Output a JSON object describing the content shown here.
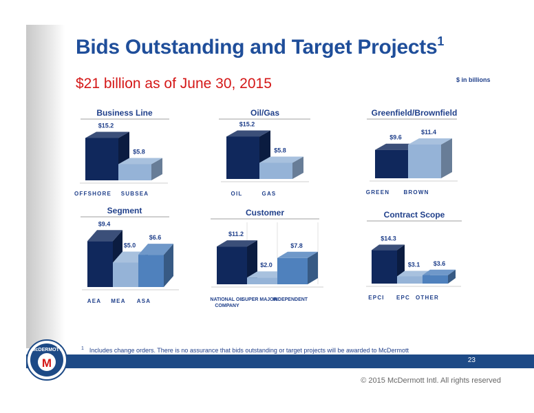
{
  "slide": {
    "title": "Bids Outstanding and Target Projects",
    "title_sup": "1",
    "subtitle": "$21 billion as of June 30, 2015",
    "units_note": "$ in billions",
    "footnote_marker": "1",
    "footnote": "Includes change orders. There is no assurance that bids outstanding or target projects will be awarded to McDermott",
    "page_number": "23",
    "copyright": "© 2015 McDermott Intl. All rights reserved",
    "logo_text": "McDERMOTT",
    "logo_letter": "M"
  },
  "colors": {
    "dark_navy": "#10285c",
    "light_blue": "#95b3d7",
    "mid_blue": "#4f81bd",
    "title_blue": "#1f4e9a",
    "subtitle_red": "#d41717",
    "band_blue": "#1d4a86"
  },
  "chart_data": [
    {
      "type": "bar",
      "title": "Business Line",
      "categories": [
        "OFFSHORE",
        "SUBSEA"
      ],
      "values": [
        15.2,
        5.8
      ],
      "labels": [
        "$15.2",
        "$5.8"
      ],
      "colors": [
        "#10285c",
        "#95b3d7"
      ]
    },
    {
      "type": "bar",
      "title": "Oil/Gas",
      "categories": [
        "OIL",
        "GAS"
      ],
      "values": [
        15.2,
        5.8
      ],
      "labels": [
        "$15.2",
        "$5.8"
      ],
      "colors": [
        "#10285c",
        "#95b3d7"
      ]
    },
    {
      "type": "bar",
      "title": "Greenfield/Brownfield",
      "categories": [
        "GREEN",
        "BROWN"
      ],
      "values": [
        9.6,
        11.4
      ],
      "labels": [
        "$9.6",
        "$11.4"
      ],
      "colors": [
        "#10285c",
        "#95b3d7"
      ]
    },
    {
      "type": "bar",
      "title": "Segment",
      "categories": [
        "AEA",
        "MEA",
        "ASA"
      ],
      "values": [
        9.4,
        5.0,
        6.6
      ],
      "labels": [
        "$9.4",
        "$5.0",
        "$6.6"
      ],
      "colors": [
        "#10285c",
        "#95b3d7",
        "#4f81bd"
      ]
    },
    {
      "type": "bar",
      "title": "Customer",
      "categories": [
        "NATIONAL OIL COMPANY",
        "SUPER MAJOR",
        "INDEPENDENT"
      ],
      "values": [
        11.2,
        2.0,
        7.8
      ],
      "labels": [
        "$11.2",
        "$2.0",
        "$7.8"
      ],
      "colors": [
        "#10285c",
        "#95b3d7",
        "#4f81bd"
      ]
    },
    {
      "type": "bar",
      "title": "Contract Scope",
      "categories": [
        "EPCI",
        "EPC",
        "OTHER"
      ],
      "values": [
        14.3,
        3.1,
        3.6
      ],
      "labels": [
        "$14.3",
        "$3.1",
        "$3.6"
      ],
      "colors": [
        "#10285c",
        "#95b3d7",
        "#4f81bd"
      ]
    }
  ]
}
